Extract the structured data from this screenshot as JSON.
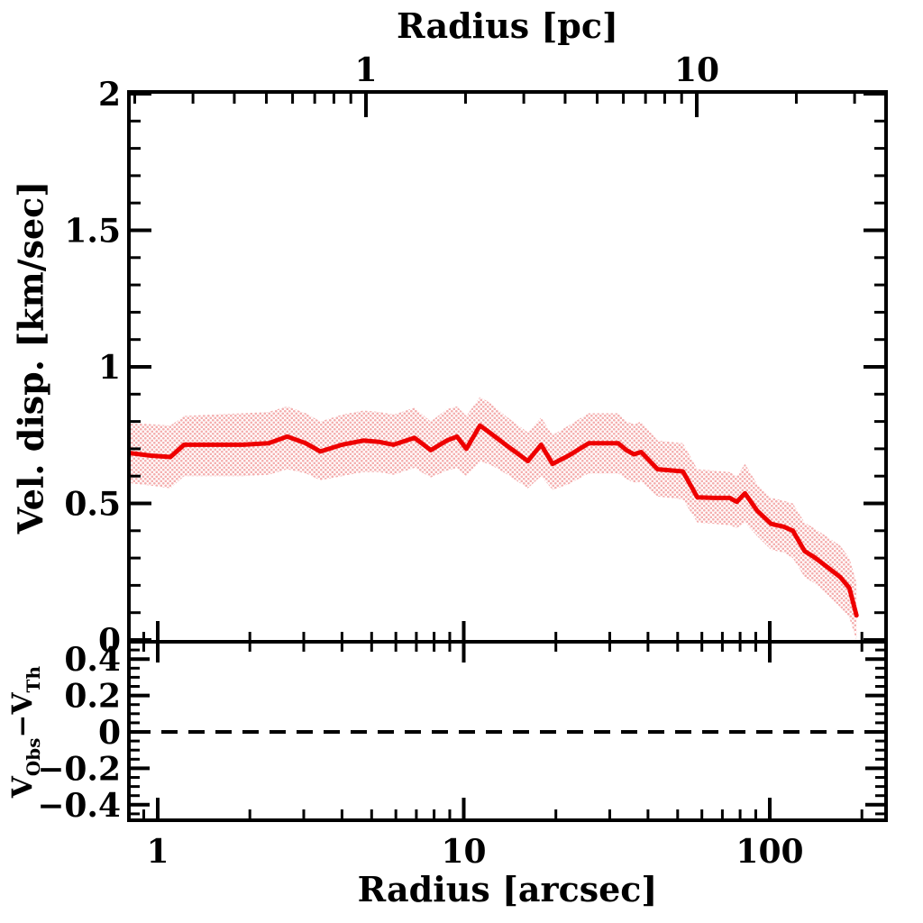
{
  "figure": {
    "background": "#ffffff",
    "axis_color": "#000000",
    "line_color": "#ee0000",
    "band_dot_color": "#f4aeae",
    "band_bg_color": "#ffffff"
  },
  "top_axis": {
    "title": "Radius [pc]",
    "major_ticks": [
      1,
      10
    ],
    "major_tick_labels": [
      "1",
      "10"
    ],
    "minor_ticks": [
      0.2,
      0.3,
      0.4,
      0.5,
      0.6,
      0.7,
      0.8,
      0.9,
      2,
      3,
      4,
      5,
      6,
      7,
      8,
      9,
      20,
      30
    ]
  },
  "bottom_axis": {
    "title": "Radius [arcsec]",
    "major_ticks": [
      1,
      10,
      100
    ],
    "major_tick_labels": [
      "1",
      "10",
      "100"
    ],
    "minor_ticks": [
      0.9,
      2,
      3,
      4,
      5,
      6,
      7,
      8,
      9,
      20,
      30,
      40,
      50,
      60,
      70,
      80,
      90,
      200
    ],
    "xlim": [
      0.805,
      240
    ],
    "scale": "log"
  },
  "main_panel": {
    "ylabel": "Vel. disp. [km/sec]",
    "ylim": [
      0,
      2
    ],
    "ytick_values": [
      2,
      1.5,
      1,
      0.5,
      0
    ],
    "ytick_labels": [
      "2",
      "1.5",
      "1",
      "0.5",
      "0"
    ],
    "ytick_minor_step": 0.1
  },
  "residual_panel": {
    "ylabel_v1": "V",
    "ylabel_sub1": "Obs",
    "ylabel_mid": "−V",
    "ylabel_sub2": "Th",
    "ylim": [
      -0.5,
      0.49
    ],
    "ytick_values": [
      0.4,
      0.2,
      0,
      -0.2,
      -0.4
    ],
    "ytick_labels": [
      "0.4",
      "0.2",
      "0",
      "−0.2",
      "−0.4"
    ],
    "ytick_minor_step": 0.05,
    "zero_reference_line": {
      "y": 0,
      "style": "dashed",
      "color": "#000000"
    }
  },
  "chart_data": {
    "type": "line",
    "xscale": "log",
    "xlabel_top": "Radius [pc]",
    "xlabel_bottom": "Radius [arcsec]",
    "panels": [
      "velocity-dispersion",
      "residual"
    ],
    "series": [
      {
        "name": "observed velocity dispersion with uncertainty band",
        "color": "#ee0000",
        "band": true,
        "points": [
          {
            "r": 0.8,
            "v": 0.685,
            "lo": 0.575,
            "hi": 0.795
          },
          {
            "r": 0.95,
            "v": 0.675,
            "lo": 0.565,
            "hi": 0.79
          },
          {
            "r": 1.1,
            "v": 0.67,
            "lo": 0.555,
            "hi": 0.785
          },
          {
            "r": 1.22,
            "v": 0.715,
            "lo": 0.6,
            "hi": 0.82
          },
          {
            "r": 1.5,
            "v": 0.715,
            "lo": 0.6,
            "hi": 0.825
          },
          {
            "r": 1.9,
            "v": 0.715,
            "lo": 0.6,
            "hi": 0.83
          },
          {
            "r": 2.3,
            "v": 0.72,
            "lo": 0.605,
            "hi": 0.835
          },
          {
            "r": 2.65,
            "v": 0.745,
            "lo": 0.625,
            "hi": 0.855
          },
          {
            "r": 3.05,
            "v": 0.72,
            "lo": 0.61,
            "hi": 0.83
          },
          {
            "r": 3.4,
            "v": 0.69,
            "lo": 0.585,
            "hi": 0.8
          },
          {
            "r": 4.0,
            "v": 0.715,
            "lo": 0.6,
            "hi": 0.825
          },
          {
            "r": 4.7,
            "v": 0.73,
            "lo": 0.615,
            "hi": 0.84
          },
          {
            "r": 5.3,
            "v": 0.725,
            "lo": 0.615,
            "hi": 0.835
          },
          {
            "r": 5.9,
            "v": 0.715,
            "lo": 0.605,
            "hi": 0.825
          },
          {
            "r": 6.9,
            "v": 0.74,
            "lo": 0.63,
            "hi": 0.85
          },
          {
            "r": 7.8,
            "v": 0.695,
            "lo": 0.595,
            "hi": 0.8
          },
          {
            "r": 8.8,
            "v": 0.73,
            "lo": 0.62,
            "hi": 0.845
          },
          {
            "r": 9.5,
            "v": 0.745,
            "lo": 0.63,
            "hi": 0.855
          },
          {
            "r": 10.2,
            "v": 0.7,
            "lo": 0.6,
            "hi": 0.82
          },
          {
            "r": 11.3,
            "v": 0.785,
            "lo": 0.655,
            "hi": 0.89
          },
          {
            "r": 12.3,
            "v": 0.755,
            "lo": 0.64,
            "hi": 0.865
          },
          {
            "r": 13.7,
            "v": 0.715,
            "lo": 0.61,
            "hi": 0.82
          },
          {
            "r": 16.2,
            "v": 0.655,
            "lo": 0.555,
            "hi": 0.76
          },
          {
            "r": 17.9,
            "v": 0.715,
            "lo": 0.6,
            "hi": 0.815
          },
          {
            "r": 19.5,
            "v": 0.645,
            "lo": 0.55,
            "hi": 0.75
          },
          {
            "r": 22.0,
            "v": 0.675,
            "lo": 0.57,
            "hi": 0.785
          },
          {
            "r": 25.6,
            "v": 0.72,
            "lo": 0.61,
            "hi": 0.83
          },
          {
            "r": 32.0,
            "v": 0.72,
            "lo": 0.61,
            "hi": 0.83
          },
          {
            "r": 34.0,
            "v": 0.695,
            "lo": 0.59,
            "hi": 0.8
          },
          {
            "r": 36.0,
            "v": 0.68,
            "lo": 0.575,
            "hi": 0.79
          },
          {
            "r": 38.0,
            "v": 0.688,
            "lo": 0.58,
            "hi": 0.8
          },
          {
            "r": 43.0,
            "v": 0.625,
            "lo": 0.525,
            "hi": 0.73
          },
          {
            "r": 52.0,
            "v": 0.617,
            "lo": 0.515,
            "hi": 0.72
          },
          {
            "r": 58.0,
            "v": 0.522,
            "lo": 0.43,
            "hi": 0.625
          },
          {
            "r": 66.0,
            "v": 0.52,
            "lo": 0.425,
            "hi": 0.62
          },
          {
            "r": 74.0,
            "v": 0.52,
            "lo": 0.42,
            "hi": 0.615
          },
          {
            "r": 78.0,
            "v": 0.506,
            "lo": 0.41,
            "hi": 0.6
          },
          {
            "r": 83.0,
            "v": 0.537,
            "lo": 0.43,
            "hi": 0.645
          },
          {
            "r": 91.0,
            "v": 0.473,
            "lo": 0.38,
            "hi": 0.57
          },
          {
            "r": 101.0,
            "v": 0.425,
            "lo": 0.33,
            "hi": 0.52
          },
          {
            "r": 111.0,
            "v": 0.415,
            "lo": 0.32,
            "hi": 0.51
          },
          {
            "r": 119.0,
            "v": 0.4,
            "lo": 0.3,
            "hi": 0.5
          },
          {
            "r": 130.0,
            "v": 0.325,
            "lo": 0.23,
            "hi": 0.43
          },
          {
            "r": 139.0,
            "v": 0.305,
            "lo": 0.21,
            "hi": 0.41
          },
          {
            "r": 153.0,
            "v": 0.27,
            "lo": 0.17,
            "hi": 0.38
          },
          {
            "r": 170.0,
            "v": 0.23,
            "lo": 0.12,
            "hi": 0.345
          },
          {
            "r": 182.0,
            "v": 0.19,
            "lo": 0.08,
            "hi": 0.3
          },
          {
            "r": 192.0,
            "v": 0.09,
            "lo": 0.0,
            "hi": 0.21
          }
        ]
      }
    ]
  }
}
